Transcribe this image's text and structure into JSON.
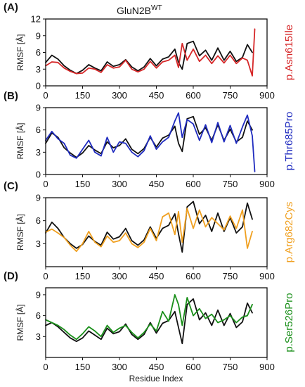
{
  "figure": {
    "title_main": "GluN2B",
    "title_sup": "WT",
    "xlabel": "Residue Index",
    "ylabel": "RMSF [Å]",
    "reference_color": "#111111"
  },
  "chart_data": [
    {
      "type": "line",
      "panel": "(A)",
      "variant_label": "p.Asn615Ile",
      "variant_color": "#d62728",
      "xlim": [
        0,
        900
      ],
      "ylim": [
        0,
        12
      ],
      "xticks": [
        0,
        150,
        300,
        450,
        600,
        750,
        900
      ],
      "yticks": [
        0,
        3,
        6,
        9,
        12
      ],
      "series": [
        {
          "role": "reference",
          "x": [
            0,
            25,
            50,
            75,
            100,
            125,
            150,
            175,
            200,
            225,
            250,
            275,
            300,
            325,
            350,
            375,
            400,
            425,
            450,
            475,
            500,
            525,
            540,
            555,
            575,
            600,
            625,
            650,
            675,
            700,
            725,
            750,
            775,
            800,
            820,
            840
          ],
          "y": [
            4.2,
            5.5,
            4.8,
            3.6,
            2.8,
            2.2,
            2.8,
            3.8,
            3.2,
            2.7,
            4.3,
            3.5,
            3.8,
            4.7,
            3.4,
            2.7,
            3.4,
            4.9,
            3.6,
            4.8,
            5.2,
            6.6,
            4.2,
            3.0,
            7.6,
            8.0,
            5.4,
            6.4,
            4.6,
            6.8,
            4.6,
            6.2,
            4.4,
            5.1,
            7.4,
            6.0
          ]
        },
        {
          "role": "variant",
          "x": [
            0,
            25,
            50,
            75,
            100,
            125,
            150,
            175,
            200,
            225,
            250,
            275,
            300,
            325,
            350,
            375,
            400,
            425,
            450,
            475,
            500,
            525,
            540,
            555,
            575,
            600,
            625,
            650,
            675,
            700,
            725,
            750,
            775,
            800,
            820,
            840,
            850
          ],
          "y": [
            3.6,
            4.3,
            4.2,
            3.2,
            2.6,
            2.2,
            2.3,
            3.2,
            3.0,
            2.4,
            3.8,
            3.2,
            3.4,
            4.6,
            3.0,
            2.5,
            3.0,
            4.4,
            3.2,
            4.3,
            4.6,
            5.5,
            3.3,
            7.6,
            4.6,
            6.6,
            4.4,
            5.5,
            4.0,
            5.4,
            4.1,
            5.5,
            4.0,
            5.0,
            4.6,
            1.8,
            10.2
          ]
        }
      ]
    },
    {
      "type": "line",
      "panel": "(B)",
      "variant_label": "p.Thr685Pro",
      "variant_color": "#1f2bbf",
      "xlim": [
        0,
        900
      ],
      "ylim": [
        0,
        9
      ],
      "xticks": [
        0,
        150,
        300,
        450,
        600,
        750,
        900
      ],
      "yticks": [
        0,
        3,
        6,
        9
      ],
      "series": [
        {
          "role": "reference",
          "x": [
            0,
            25,
            50,
            75,
            100,
            125,
            150,
            175,
            200,
            225,
            250,
            275,
            300,
            325,
            350,
            375,
            400,
            425,
            450,
            475,
            500,
            525,
            540,
            555,
            575,
            600,
            625,
            650,
            675,
            700,
            725,
            750,
            775,
            800,
            820,
            840
          ],
          "y": [
            4.2,
            5.6,
            5.0,
            3.6,
            2.9,
            2.3,
            2.9,
            3.9,
            3.3,
            2.8,
            4.4,
            3.6,
            3.9,
            4.8,
            3.4,
            2.8,
            3.5,
            5.0,
            3.7,
            4.9,
            5.3,
            6.5,
            4.2,
            3.1,
            7.5,
            7.8,
            5.4,
            6.3,
            4.6,
            6.7,
            4.6,
            6.1,
            4.4,
            5.0,
            7.2,
            6.0
          ]
        },
        {
          "role": "variant",
          "x": [
            0,
            25,
            50,
            75,
            100,
            125,
            150,
            175,
            200,
            225,
            250,
            275,
            300,
            325,
            350,
            375,
            400,
            425,
            450,
            475,
            500,
            525,
            540,
            555,
            575,
            600,
            625,
            650,
            675,
            700,
            725,
            750,
            775,
            800,
            820,
            840,
            850
          ],
          "y": [
            4.6,
            5.8,
            4.8,
            4.2,
            2.6,
            2.2,
            3.4,
            4.6,
            3.0,
            2.5,
            5.0,
            3.0,
            4.4,
            4.2,
            3.0,
            2.4,
            3.2,
            5.2,
            3.4,
            4.4,
            5.0,
            7.2,
            8.3,
            5.0,
            7.4,
            6.8,
            4.6,
            6.7,
            4.3,
            7.0,
            4.4,
            6.6,
            4.2,
            6.4,
            8.0,
            5.2,
            0.4
          ]
        }
      ]
    },
    {
      "type": "line",
      "panel": "(C)",
      "variant_label": "p.Arg682Cys",
      "variant_color": "#f0a020",
      "xlim": [
        0,
        900
      ],
      "ylim": [
        0,
        9
      ],
      "xticks": [
        0,
        150,
        300,
        450,
        600,
        750,
        900
      ],
      "yticks": [
        3,
        6,
        9
      ],
      "series": [
        {
          "role": "reference",
          "x": [
            0,
            25,
            50,
            75,
            100,
            125,
            150,
            175,
            200,
            225,
            250,
            275,
            300,
            325,
            350,
            375,
            400,
            425,
            450,
            475,
            500,
            525,
            540,
            555,
            575,
            600,
            625,
            650,
            675,
            700,
            725,
            750,
            775,
            800,
            820,
            840
          ],
          "y": [
            4.4,
            5.8,
            5.0,
            3.8,
            3.0,
            2.4,
            2.9,
            4.0,
            3.3,
            2.8,
            4.5,
            3.6,
            3.9,
            5.0,
            3.4,
            2.8,
            3.5,
            5.2,
            3.7,
            5.0,
            5.4,
            6.9,
            4.3,
            1.9,
            7.8,
            8.5,
            5.6,
            6.7,
            4.6,
            7.0,
            4.6,
            6.4,
            4.4,
            5.2,
            8.3,
            6.2
          ]
        },
        {
          "role": "variant",
          "x": [
            0,
            25,
            50,
            75,
            100,
            125,
            150,
            175,
            200,
            225,
            250,
            275,
            300,
            325,
            350,
            375,
            400,
            425,
            450,
            475,
            500,
            525,
            540,
            555,
            575,
            600,
            625,
            650,
            675,
            700,
            725,
            750,
            775,
            800,
            820,
            840
          ],
          "y": [
            4.5,
            4.9,
            4.4,
            3.8,
            2.8,
            2.0,
            3.0,
            4.6,
            3.2,
            2.6,
            4.0,
            3.2,
            3.4,
            4.4,
            3.0,
            2.5,
            3.2,
            5.0,
            3.4,
            6.5,
            7.0,
            4.2,
            7.2,
            3.2,
            7.6,
            5.0,
            7.4,
            5.2,
            6.4,
            5.6,
            4.8,
            6.6,
            5.0,
            7.4,
            2.4,
            4.6
          ]
        }
      ]
    },
    {
      "type": "line",
      "panel": "(D)",
      "variant_label": "p.Ser526Pro",
      "variant_color": "#1a8f1a",
      "xlim": [
        0,
        900
      ],
      "ylim": [
        0,
        10
      ],
      "xticks": [
        0,
        150,
        300,
        450,
        600,
        750,
        900
      ],
      "yticks": [
        3,
        6,
        9
      ],
      "xlabel": "Residue Index",
      "series": [
        {
          "role": "reference",
          "x": [
            0,
            25,
            50,
            75,
            100,
            125,
            150,
            175,
            200,
            225,
            250,
            275,
            300,
            325,
            350,
            375,
            400,
            425,
            450,
            475,
            500,
            525,
            540,
            555,
            575,
            600,
            625,
            650,
            675,
            700,
            725,
            750,
            775,
            800,
            820,
            840
          ],
          "y": [
            4.6,
            5.0,
            4.4,
            3.6,
            2.8,
            2.3,
            2.8,
            3.8,
            3.2,
            2.6,
            4.2,
            3.4,
            3.7,
            4.8,
            3.3,
            2.6,
            3.3,
            5.0,
            3.5,
            4.9,
            5.3,
            6.6,
            4.3,
            2.0,
            7.6,
            8.4,
            5.4,
            6.4,
            4.6,
            6.8,
            4.6,
            6.3,
            4.3,
            5.1,
            7.8,
            6.4
          ]
        },
        {
          "role": "variant",
          "x": [
            0,
            25,
            50,
            75,
            100,
            125,
            150,
            175,
            200,
            225,
            250,
            275,
            300,
            325,
            350,
            375,
            400,
            425,
            450,
            475,
            500,
            525,
            540,
            555,
            575,
            600,
            625,
            650,
            675,
            700,
            725,
            750,
            775,
            800,
            820,
            840
          ],
          "y": [
            5.4,
            5.0,
            4.6,
            4.0,
            3.2,
            2.6,
            3.4,
            4.4,
            3.8,
            3.0,
            4.6,
            3.6,
            4.2,
            4.6,
            3.6,
            2.8,
            3.6,
            4.8,
            3.8,
            6.6,
            5.2,
            9.0,
            7.6,
            4.6,
            8.6,
            6.0,
            7.0,
            5.6,
            6.2,
            5.0,
            5.4,
            6.0,
            5.0,
            5.8,
            6.0,
            7.6
          ]
        }
      ]
    }
  ]
}
